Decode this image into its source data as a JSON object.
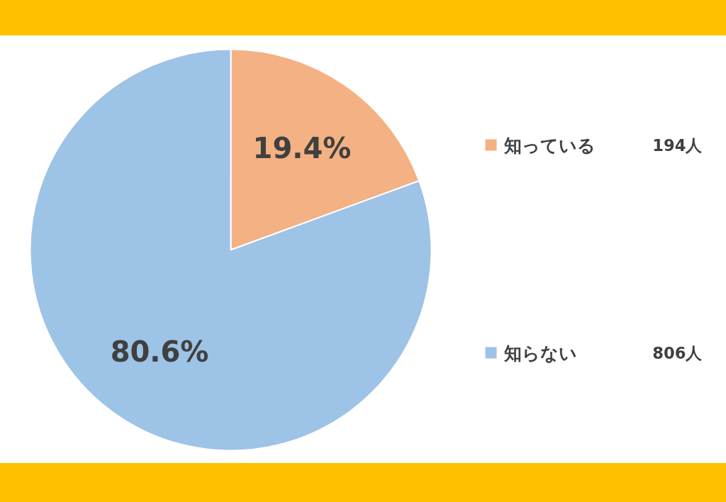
{
  "chart_data": {
    "type": "pie",
    "categories": [
      "知っている",
      "知らない"
    ],
    "values": [
      19.4,
      80.6
    ],
    "value_labels": [
      "19.4%",
      "80.6%"
    ],
    "colors": [
      "#f4b183",
      "#9dc3e6"
    ],
    "legend": "right",
    "annotations": [
      "194人",
      "806人"
    ]
  }
}
